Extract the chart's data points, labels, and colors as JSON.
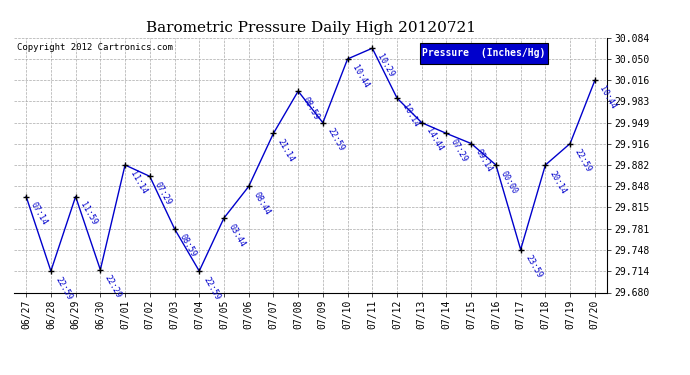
{
  "title": "Barometric Pressure Daily High 20120721",
  "ylabel": "Pressure  (Inches/Hg)",
  "copyright_text": "Copyright 2012 Cartronics.com",
  "line_color": "#0000CC",
  "background_color": "#ffffff",
  "grid_color": "#aaaaaa",
  "legend_bg": "#0000CC",
  "legend_text_color": "#ffffff",
  "dates": [
    "06/27",
    "06/28",
    "06/29",
    "06/30",
    "07/01",
    "07/02",
    "07/03",
    "07/04",
    "07/05",
    "07/06",
    "07/07",
    "07/08",
    "07/09",
    "07/10",
    "07/11",
    "07/12",
    "07/13",
    "07/14",
    "07/15",
    "07/16",
    "07/17",
    "07/18",
    "07/19",
    "07/20"
  ],
  "values": [
    29.832,
    29.714,
    29.832,
    29.716,
    29.882,
    29.864,
    29.781,
    29.714,
    29.798,
    29.848,
    29.932,
    29.999,
    29.949,
    30.05,
    30.067,
    29.988,
    29.949,
    29.932,
    29.916,
    29.882,
    29.748,
    29.882,
    29.916,
    30.016
  ],
  "times": [
    "07:14",
    "22:59",
    "11:59",
    "22:29",
    "11:14",
    "07:29",
    "08:59",
    "22:59",
    "03:44",
    "08:44",
    "21:14",
    "08:59",
    "22:59",
    "10:44",
    "10:29",
    "10:14",
    "14:44",
    "07:29",
    "09:14",
    "00:00",
    "23:59",
    "20:14",
    "22:59",
    "10:44"
  ],
  "ylim": [
    29.68,
    30.084
  ],
  "yticks": [
    29.68,
    29.714,
    29.748,
    29.781,
    29.815,
    29.848,
    29.882,
    29.916,
    29.949,
    29.983,
    30.016,
    30.05,
    30.084
  ],
  "figsize": [
    6.9,
    3.75
  ],
  "dpi": 100
}
